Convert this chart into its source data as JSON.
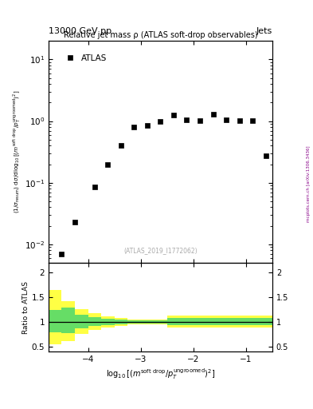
{
  "title_left": "13000 GeV pp",
  "title_right": "Jets",
  "plot_title": "Relative jet mass ρ (ATLAS soft-drop observables)",
  "watermark": "(ATLAS_2019_I1772062)",
  "right_label": "mcplots.cern.ch [arXiv:1306.3436]",
  "legend_label": "ATLAS",
  "data_x": [
    -4.5,
    -4.25,
    -3.875,
    -3.625,
    -3.375,
    -3.125,
    -2.875,
    -2.625,
    -2.375,
    -2.125,
    -1.875,
    -1.625,
    -1.375,
    -1.125,
    -0.875,
    -0.625
  ],
  "data_y": [
    0.007,
    0.023,
    0.085,
    0.195,
    0.4,
    0.79,
    0.85,
    1.0,
    1.25,
    1.05,
    1.03,
    1.28,
    1.05,
    1.02,
    1.02,
    0.27
  ],
  "xlim": [
    -4.75,
    -0.5
  ],
  "ylim_main": [
    0.005,
    20
  ],
  "ylim_ratio": [
    0.4,
    2.2
  ],
  "band_edges": [
    -4.75,
    -4.5,
    -4.25,
    -4.0,
    -3.75,
    -3.5,
    -3.25,
    -3.0,
    -2.75,
    -2.5,
    -0.5
  ],
  "green_top": [
    1.25,
    1.3,
    1.15,
    1.1,
    1.07,
    1.05,
    1.04,
    1.04,
    1.04,
    1.08,
    1.08
  ],
  "green_bottom": [
    0.8,
    0.78,
    0.88,
    0.92,
    0.94,
    0.96,
    0.97,
    0.97,
    0.97,
    0.94,
    0.94
  ],
  "yellow_top": [
    1.65,
    1.42,
    1.27,
    1.18,
    1.12,
    1.08,
    1.06,
    1.06,
    1.06,
    1.13,
    1.13
  ],
  "yellow_bottom": [
    0.55,
    0.62,
    0.76,
    0.84,
    0.89,
    0.93,
    0.95,
    0.95,
    0.95,
    0.89,
    0.89
  ]
}
